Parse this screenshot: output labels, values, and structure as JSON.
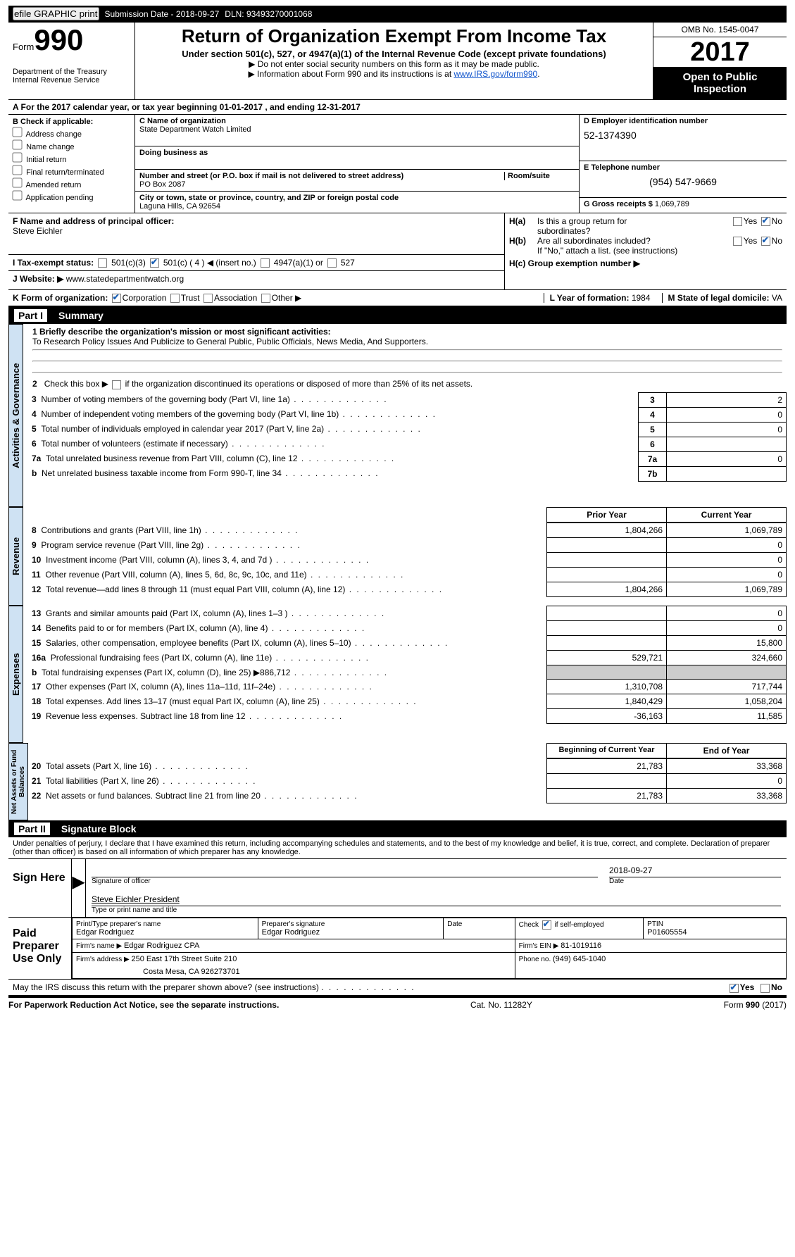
{
  "topbar": {
    "efile_btn": "efile GRAPHIC print",
    "submission_label": "Submission Date - 2018-09-27",
    "dln_label": "DLN: 93493270001068"
  },
  "header": {
    "form_word": "Form",
    "form_num": "990",
    "dept1": "Department of the Treasury",
    "dept2": "Internal Revenue Service",
    "title": "Return of Organization Exempt From Income Tax",
    "subtitle": "Under section 501(c), 527, or 4947(a)(1) of the Internal Revenue Code (except private foundations)",
    "note1": "▶ Do not enter social security numbers on this form as it may be made public.",
    "note2_pre": "▶ Information about Form 990 and its instructions is at ",
    "note2_link": "www.IRS.gov/form990",
    "omb": "OMB No. 1545-0047",
    "year": "2017",
    "open": "Open to Public Inspection"
  },
  "rowA": "A  For the 2017 calendar year, or tax year beginning 01-01-2017   , and ending 12-31-2017",
  "colB": {
    "hdr": "B Check if applicable:",
    "opts": [
      "Address change",
      "Name change",
      "Initial return",
      "Final return/terminated",
      "Amended return",
      "Application pending"
    ]
  },
  "colC": {
    "name_lbl": "C Name of organization",
    "name_val": "State Department Watch Limited",
    "dba_lbl": "Doing business as",
    "street_lbl": "Number and street (or P.O. box if mail is not delivered to street address)",
    "street_val": "PO Box 2087",
    "room_lbl": "Room/suite",
    "city_lbl": "City or town, state or province, country, and ZIP or foreign postal code",
    "city_val": "Laguna Hills, CA  92654"
  },
  "colD": {
    "ein_lbl": "D Employer identification number",
    "ein_val": "52-1374390",
    "tel_lbl": "E Telephone number",
    "tel_val": "(954) 547-9669",
    "gross_lbl": "G Gross receipts $ ",
    "gross_val": "1,069,789"
  },
  "rowF": {
    "lbl": "F Name and address of principal officer:",
    "val": "Steve Eichler"
  },
  "rowH": {
    "a_lbl": "H(a)  Is this a group return for",
    "a_lbl2": "subordinates?",
    "b_lbl": "H(b)  Are all subordinates included?",
    "b_note": "If \"No,\" attach a list. (see instructions)",
    "c_lbl": "H(c)  Group exemption number ▶",
    "yes": "Yes",
    "no": "No"
  },
  "rowI": {
    "lbl": "I  Tax-exempt status:",
    "o1": "501(c)(3)",
    "o2": "501(c) ( 4 ) ◀ (insert no.)",
    "o3": "4947(a)(1) or",
    "o4": "527"
  },
  "rowJ": {
    "lbl": "J  Website: ▶",
    "val": "www.statedepartmentwatch.org"
  },
  "rowK": {
    "form_lbl": "K Form of organization:",
    "corp": "Corporation",
    "trust": "Trust",
    "assoc": "Association",
    "other": "Other ▶",
    "year_lbl": "L Year of formation: ",
    "year_val": "1984",
    "state_lbl": "M State of legal domicile: ",
    "state_val": "VA"
  },
  "part1": {
    "num": "Part I",
    "title": "Summary"
  },
  "summary": {
    "s1_lbl": "1  Briefly describe the organization's mission or most significant activities:",
    "s1_val": "To Research Policy Issues And Publicize to General Public, Public Officials, News Media, And Supporters.",
    "s2": "2   Check this box ▶      if the organization discontinued its operations or disposed of more than 25% of its net assets.",
    "rows": [
      {
        "n": "3",
        "t": "Number of voting members of the governing body (Part VI, line 1a)",
        "k": "3",
        "v": "2"
      },
      {
        "n": "4",
        "t": "Number of independent voting members of the governing body (Part VI, line 1b)",
        "k": "4",
        "v": "0"
      },
      {
        "n": "5",
        "t": "Total number of individuals employed in calendar year 2017 (Part V, line 2a)",
        "k": "5",
        "v": "0"
      },
      {
        "n": "6",
        "t": "Total number of volunteers (estimate if necessary)",
        "k": "6",
        "v": ""
      },
      {
        "n": "7a",
        "t": "Total unrelated business revenue from Part VIII, column (C), line 12",
        "k": "7a",
        "v": "0"
      },
      {
        "n": "b",
        "t": "Net unrelated business taxable income from Form 990-T, line 34",
        "k": "7b",
        "v": ""
      }
    ],
    "colhdr_prior": "Prior Year",
    "colhdr_curr": "Current Year",
    "rev": [
      {
        "n": "8",
        "t": "Contributions and grants (Part VIII, line 1h)",
        "p": "1,804,266",
        "c": "1,069,789"
      },
      {
        "n": "9",
        "t": "Program service revenue (Part VIII, line 2g)",
        "p": "",
        "c": "0"
      },
      {
        "n": "10",
        "t": "Investment income (Part VIII, column (A), lines 3, 4, and 7d )",
        "p": "",
        "c": "0"
      },
      {
        "n": "11",
        "t": "Other revenue (Part VIII, column (A), lines 5, 6d, 8c, 9c, 10c, and 11e)",
        "p": "",
        "c": "0"
      },
      {
        "n": "12",
        "t": "Total revenue—add lines 8 through 11 (must equal Part VIII, column (A), line 12)",
        "p": "1,804,266",
        "c": "1,069,789"
      }
    ],
    "exp": [
      {
        "n": "13",
        "t": "Grants and similar amounts paid (Part IX, column (A), lines 1–3 )",
        "p": "",
        "c": "0"
      },
      {
        "n": "14",
        "t": "Benefits paid to or for members (Part IX, column (A), line 4)",
        "p": "",
        "c": "0"
      },
      {
        "n": "15",
        "t": "Salaries, other compensation, employee benefits (Part IX, column (A), lines 5–10)",
        "p": "",
        "c": "15,800"
      },
      {
        "n": "16a",
        "t": "Professional fundraising fees (Part IX, column (A), line 11e)",
        "p": "529,721",
        "c": "324,660"
      },
      {
        "n": "b",
        "t": "Total fundraising expenses (Part IX, column (D), line 25) ▶886,712",
        "p": "GRAY",
        "c": "GRAY"
      },
      {
        "n": "17",
        "t": "Other expenses (Part IX, column (A), lines 11a–11d, 11f–24e)",
        "p": "1,310,708",
        "c": "717,744"
      },
      {
        "n": "18",
        "t": "Total expenses. Add lines 13–17 (must equal Part IX, column (A), line 25)",
        "p": "1,840,429",
        "c": "1,058,204"
      },
      {
        "n": "19",
        "t": "Revenue less expenses. Subtract line 18 from line 12",
        "p": "-36,163",
        "c": "11,585"
      }
    ],
    "colhdr_beg": "Beginning of Current Year",
    "colhdr_end": "End of Year",
    "net": [
      {
        "n": "20",
        "t": "Total assets (Part X, line 16)",
        "p": "21,783",
        "c": "33,368"
      },
      {
        "n": "21",
        "t": "Total liabilities (Part X, line 26)",
        "p": "",
        "c": "0"
      },
      {
        "n": "22",
        "t": "Net assets or fund balances. Subtract line 21 from line 20",
        "p": "21,783",
        "c": "33,368"
      }
    ],
    "side_gov": "Activities & Governance",
    "side_rev": "Revenue",
    "side_exp": "Expenses",
    "side_net": "Net Assets or Fund Balances"
  },
  "part2": {
    "num": "Part II",
    "title": "Signature Block"
  },
  "sig": {
    "decl": "Under penalties of perjury, I declare that I have examined this return, including accompanying schedules and statements, and to the best of my knowledge and belief, it is true, correct, and complete. Declaration of preparer (other than officer) is based on all information of which preparer has any knowledge.",
    "sign_here": "Sign Here",
    "date": "2018-09-27",
    "sigof": "Signature of officer",
    "datew": "Date",
    "name": "Steve Eichler President",
    "namecap": "Type or print name and title",
    "paid": "Paid Preparer Use Only",
    "pname_lbl": "Print/Type preparer's name",
    "pname": "Edgar Rodriguez",
    "psig_lbl": "Preparer's signature",
    "psig": "Edgar Rodriguez",
    "pdate_lbl": "Date",
    "pself": "Check       if self-employed",
    "ptin_lbl": "PTIN",
    "ptin": "P01605554",
    "firm_lbl": "Firm's name      ▶ ",
    "firm": "Edgar Rodriguez CPA",
    "fein_lbl": "Firm's EIN ▶ ",
    "fein": "81-1019116",
    "faddr_lbl": "Firm's address ▶ ",
    "faddr1": "250 East 17th Street Suite 210",
    "faddr2": "Costa Mesa, CA  926273701",
    "fphone_lbl": "Phone no. ",
    "fphone": "(949) 645-1040",
    "discuss": "May the IRS discuss this return with the preparer shown above? (see instructions)",
    "yes": "Yes",
    "no": "No"
  },
  "footer": {
    "l": "For Paperwork Reduction Act Notice, see the separate instructions.",
    "m": "Cat. No. 11282Y",
    "r": "Form 990 (2017)"
  }
}
